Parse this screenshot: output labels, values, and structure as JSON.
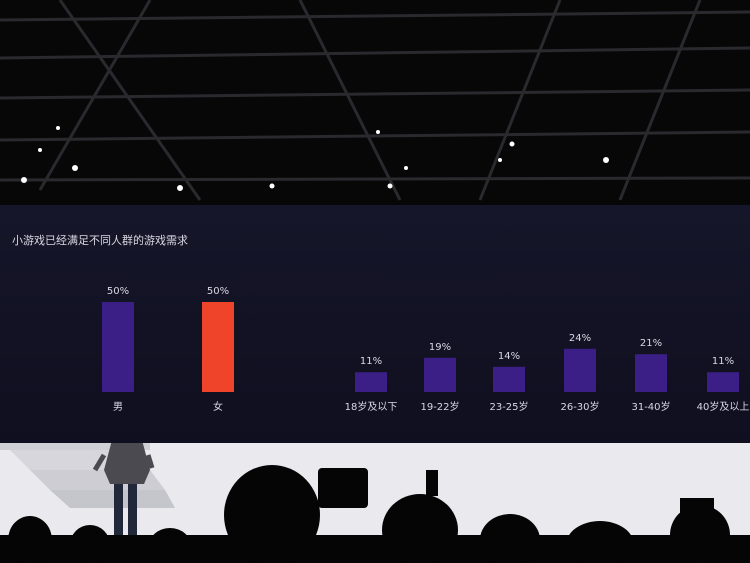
{
  "chart_data": {
    "type": "bar",
    "title": "小游戏已经满足不同人群的游戏需求",
    "groups": [
      {
        "name": "gender",
        "categories": [
          "男",
          "女"
        ],
        "values": [
          50,
          50
        ],
        "labels": [
          "50%",
          "50%"
        ],
        "colors": [
          "#3b1f86",
          "#f0442a"
        ]
      },
      {
        "name": "age",
        "categories": [
          "18岁及以下",
          "19-22岁",
          "23-25岁",
          "26-30岁",
          "31-40岁",
          "40岁及以上"
        ],
        "values": [
          11,
          19,
          14,
          24,
          21,
          11
        ],
        "labels": [
          "11%",
          "19%",
          "14%",
          "24%",
          "21%",
          "11%"
        ],
        "colors": [
          "#3b1f86",
          "#3b1f86",
          "#3b1f86",
          "#3b1f86",
          "#3b1f86",
          "#3b1f86"
        ]
      }
    ],
    "ylim": [
      0,
      100
    ],
    "unit": "%",
    "grid": false,
    "legend": "none"
  },
  "colors": {
    "screen": "#141428",
    "bar_primary": "#3b1f86",
    "bar_highlight": "#f0442a",
    "text": "#d8d8e4"
  }
}
